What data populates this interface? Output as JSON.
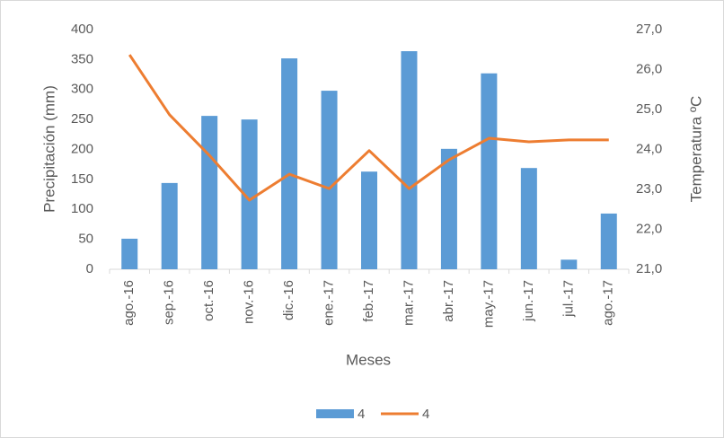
{
  "chart_data": {
    "type": "bar",
    "categories": [
      "ago.-16",
      "sep.-16",
      "oct.-16",
      "nov.-16",
      "dic.-16",
      "ene.-17",
      "feb.-17",
      "mar.-17",
      "abr.-17",
      "may.-17",
      "jun.-17",
      "jul.-17",
      "ago.-17"
    ],
    "series": [
      {
        "name": "4",
        "type": "bar",
        "color": "#5b9bd5",
        "values": [
          51,
          144,
          256,
          250,
          352,
          298,
          163,
          364,
          201,
          327,
          169,
          16,
          93
        ]
      },
      {
        "name": "4",
        "type": "line",
        "axis": "y2",
        "color": "#ed7d31",
        "values": [
          26.37,
          24.87,
          23.85,
          22.73,
          23.38,
          23.02,
          23.97,
          23.02,
          23.74,
          24.28,
          24.19,
          24.24,
          24.24
        ]
      }
    ],
    "xlabel": "Meses",
    "ylabel": "Precipitación (mm)",
    "y2label": "Temperatura ºC",
    "ylim": [
      0,
      400
    ],
    "yticks": [
      0,
      50,
      100,
      150,
      200,
      250,
      300,
      350,
      400
    ],
    "y2lim": [
      21,
      27
    ],
    "y2ticks": [
      {
        "value": 21,
        "label": "21,0"
      },
      {
        "value": 22,
        "label": "22,0"
      },
      {
        "value": 23,
        "label": "23,0"
      },
      {
        "value": 24,
        "label": "24,0"
      },
      {
        "value": 25,
        "label": "25,0"
      },
      {
        "value": 26,
        "label": "26,0"
      },
      {
        "value": 27,
        "label": "27,0"
      }
    ],
    "grid": false,
    "legend": "bottom"
  }
}
